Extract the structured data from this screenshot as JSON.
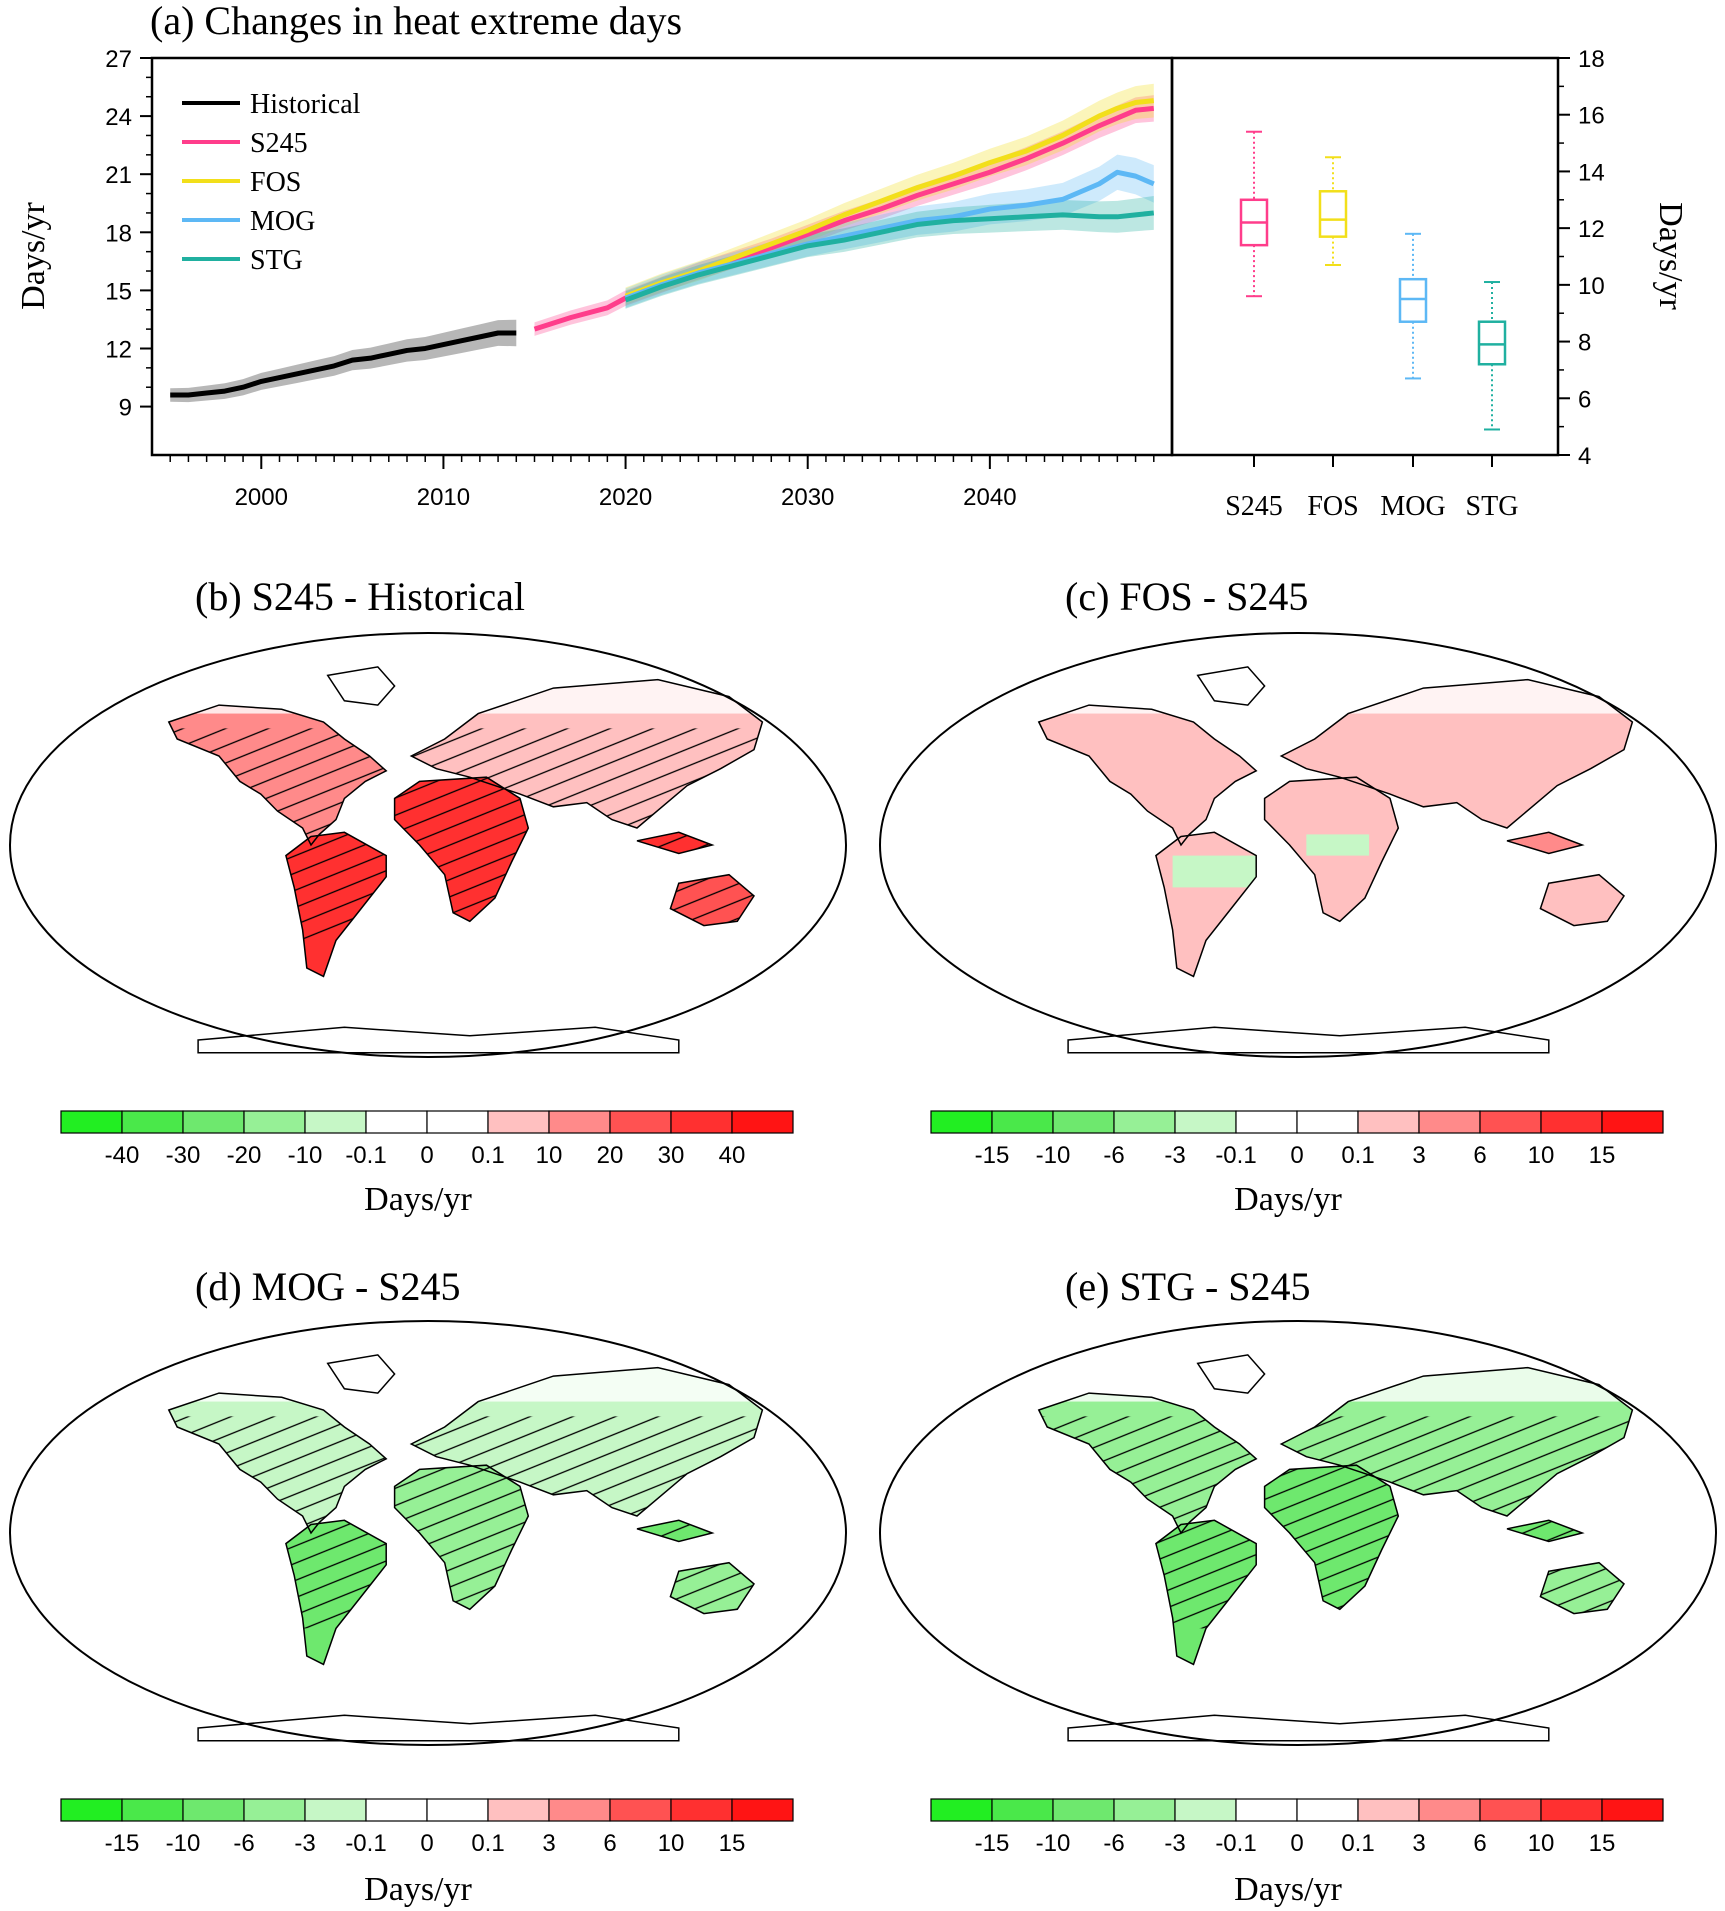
{
  "chart_data": [
    {
      "type": "line",
      "title": "(a) Changes in heat extreme days",
      "ylabel": "Days/yr",
      "ylim": [
        6.5,
        27
      ],
      "yticks": [
        9,
        12,
        15,
        18,
        21,
        24,
        27
      ],
      "xlim": [
        1994,
        2050
      ],
      "xticks": [
        2000,
        2010,
        2020,
        2030,
        2040
      ],
      "legend": "top-left",
      "series": [
        {
          "name": "Historical",
          "color": "#000000",
          "x": [
            1995,
            1996,
            1997,
            1998,
            1999,
            2000,
            2001,
            2002,
            2003,
            2004,
            2005,
            2006,
            2007,
            2008,
            2009,
            2010,
            2011,
            2012,
            2013,
            2014
          ],
          "y": [
            9.6,
            9.6,
            9.7,
            9.8,
            10.0,
            10.3,
            10.5,
            10.7,
            10.9,
            11.1,
            11.4,
            11.5,
            11.7,
            11.9,
            12.0,
            12.2,
            12.4,
            12.6,
            12.8,
            12.8
          ],
          "spread": 0.35
        },
        {
          "name": "S245",
          "color": "#ff3d8b",
          "x": [
            2015,
            2017,
            2019,
            2020,
            2022,
            2024,
            2026,
            2028,
            2030,
            2032,
            2034,
            2036,
            2038,
            2040,
            2042,
            2044,
            2046,
            2047,
            2048,
            2049
          ],
          "y": [
            13.0,
            13.6,
            14.1,
            14.6,
            15.3,
            16.0,
            16.6,
            17.2,
            17.9,
            18.6,
            19.2,
            19.9,
            20.5,
            21.1,
            21.8,
            22.6,
            23.5,
            23.9,
            24.3,
            24.4
          ],
          "spread": 0.35
        },
        {
          "name": "FOS",
          "color": "#f2df1a",
          "x": [
            2020,
            2022,
            2024,
            2026,
            2028,
            2030,
            2032,
            2034,
            2036,
            2038,
            2040,
            2042,
            2044,
            2046,
            2047,
            2048,
            2049
          ],
          "y": [
            14.7,
            15.4,
            16.0,
            16.7,
            17.4,
            18.1,
            18.9,
            19.6,
            20.3,
            20.9,
            21.6,
            22.2,
            23.0,
            24.0,
            24.4,
            24.7,
            24.8
          ],
          "spread": 0.45
        },
        {
          "name": "MOG",
          "color": "#5db8f5",
          "x": [
            2020,
            2022,
            2024,
            2026,
            2028,
            2030,
            2032,
            2034,
            2036,
            2038,
            2040,
            2042,
            2044,
            2046,
            2047,
            2048,
            2049
          ],
          "y": [
            14.6,
            15.3,
            15.9,
            16.4,
            16.9,
            17.4,
            17.8,
            18.2,
            18.6,
            18.8,
            19.2,
            19.4,
            19.7,
            20.5,
            21.1,
            20.9,
            20.5
          ],
          "spread": 0.5
        },
        {
          "name": "STG",
          "color": "#20b0a0",
          "x": [
            2020,
            2022,
            2024,
            2026,
            2028,
            2030,
            2032,
            2034,
            2036,
            2038,
            2040,
            2042,
            2044,
            2046,
            2047,
            2048,
            2049
          ],
          "y": [
            14.5,
            15.2,
            15.8,
            16.3,
            16.8,
            17.3,
            17.6,
            18.0,
            18.4,
            18.6,
            18.7,
            18.8,
            18.9,
            18.8,
            18.8,
            18.9,
            19.0
          ],
          "spread": 0.45
        }
      ]
    },
    {
      "type": "box",
      "ylabel": "Days/yr",
      "ylim": [
        4,
        18
      ],
      "yticks": [
        4,
        6,
        8,
        10,
        12,
        14,
        16,
        18
      ],
      "categories": [
        "S245",
        "FOS",
        "MOG",
        "STG"
      ],
      "boxes": [
        {
          "name": "S245",
          "color": "#ff3d8b",
          "min": 9.6,
          "q1": 11.4,
          "median": 12.2,
          "q3": 13.0,
          "max": 15.4
        },
        {
          "name": "FOS",
          "color": "#f2df1a",
          "min": 10.7,
          "q1": 11.7,
          "median": 12.3,
          "q3": 13.3,
          "max": 14.5
        },
        {
          "name": "MOG",
          "color": "#5db8f5",
          "min": 6.7,
          "q1": 8.7,
          "median": 9.5,
          "q3": 10.2,
          "max": 11.8
        },
        {
          "name": "STG",
          "color": "#20b0a0",
          "min": 4.9,
          "q1": 7.2,
          "median": 7.9,
          "q3": 8.7,
          "max": 10.1
        }
      ]
    },
    {
      "type": "heatmap",
      "title": "(b) S245 - Historical",
      "colorbar": {
        "labels": [
          "-40",
          "-30",
          "-20",
          "-10",
          "-0.1",
          "0",
          "0.1",
          "10",
          "20",
          "30",
          "40"
        ],
        "unit": "Days/yr"
      },
      "pattern": "warming"
    },
    {
      "type": "heatmap",
      "title": "(c) FOS - S245",
      "colorbar": {
        "labels": [
          "-15",
          "-10",
          "-6",
          "-3",
          "-0.1",
          "0",
          "0.1",
          "3",
          "6",
          "10",
          "15"
        ],
        "unit": "Days/yr"
      },
      "pattern": "mixed"
    },
    {
      "type": "heatmap",
      "title": "(d) MOG - S245",
      "colorbar": {
        "labels": [
          "-15",
          "-10",
          "-6",
          "-3",
          "-0.1",
          "0",
          "0.1",
          "3",
          "6",
          "10",
          "15"
        ],
        "unit": "Days/yr"
      },
      "pattern": "cooling"
    },
    {
      "type": "heatmap",
      "title": "(e) STG - S245",
      "colorbar": {
        "labels": [
          "-15",
          "-10",
          "-6",
          "-3",
          "-0.1",
          "0",
          "0.1",
          "3",
          "6",
          "10",
          "15"
        ],
        "unit": "Days/yr"
      },
      "pattern": "cooling-strong"
    }
  ],
  "palette": [
    "#22ee22",
    "#4ae84a",
    "#6ee86e",
    "#96f096",
    "#c6f7c6",
    "#ffffff",
    "#ffffff",
    "#ffc0c0",
    "#ff8a8a",
    "#ff5252",
    "#ff3030",
    "#ff1414"
  ]
}
